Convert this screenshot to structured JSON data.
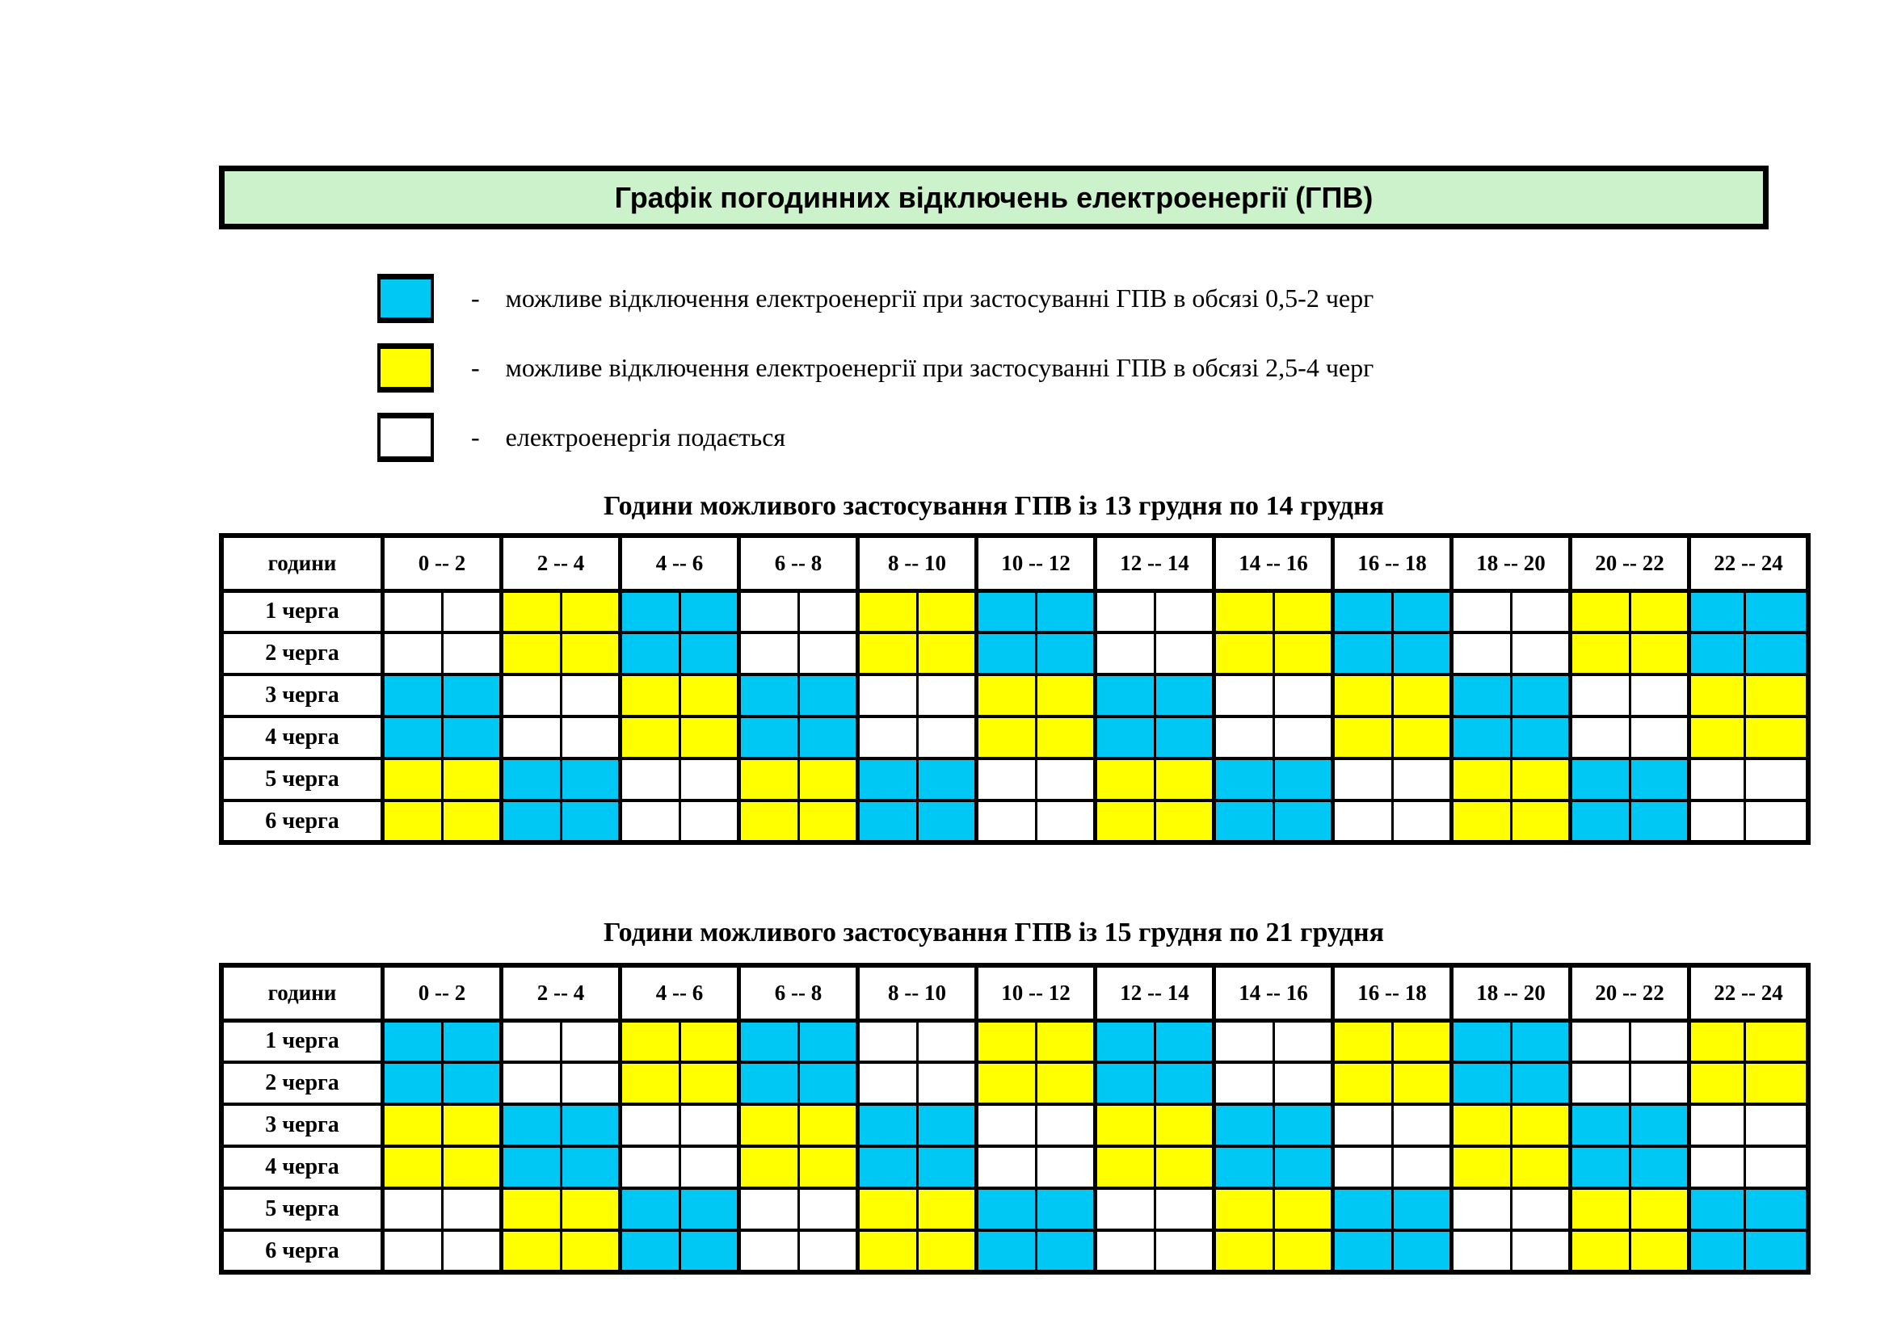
{
  "header": {
    "title": "Графік погодинних відключень електроенергії (ГПВ)",
    "bg_color": "#ccf2cc"
  },
  "legend": {
    "dash": "-",
    "items": [
      {
        "color_name": "cyan",
        "color": "#00c8f4",
        "label": "можливе відключення електроенергії при застосуванні ГПВ в обсязі 0,5-2 черг"
      },
      {
        "color_name": "yellow",
        "color": "#ffff00",
        "label": "можливе відключення електроенергії при застосуванні ГПВ в обсязі 2,5-4 черг"
      },
      {
        "color_name": "white",
        "color": "#ffffff",
        "label": "електроенергія подається"
      }
    ]
  },
  "chart_data": {
    "type": "heatmap",
    "corner_label": "години",
    "columns": [
      "0 -- 2",
      "2 -- 4",
      "4 -- 6",
      "6 -- 8",
      "8 -- 10",
      "10 -- 12",
      "12 -- 14",
      "14 -- 16",
      "16 -- 18",
      "18 -- 20",
      "20 -- 22",
      "22 -- 24"
    ],
    "subcells_per_column": 2,
    "colors": {
      "cyan": "#00c8f4",
      "yellow": "#ffff00",
      "white": "#ffffff"
    },
    "color_meaning": {
      "cyan": "можливе відключення електроенергії при застосуванні ГПВ в обсязі 0,5-2 черг",
      "yellow": "можливе відключення електроенергії при застосуванні ГПВ в обсязі 2,5-4 черг",
      "white": "електроенергія подається"
    },
    "tables": [
      {
        "title": "Години можливого застосування ГПВ із 13 грудня по 14 грудня",
        "rows": [
          {
            "label": "1 черга",
            "blocks": [
              "white",
              "yellow",
              "cyan",
              "white",
              "yellow",
              "cyan",
              "white",
              "yellow",
              "cyan",
              "white",
              "yellow",
              "cyan"
            ]
          },
          {
            "label": "2 черга",
            "blocks": [
              "white",
              "yellow",
              "cyan",
              "white",
              "yellow",
              "cyan",
              "white",
              "yellow",
              "cyan",
              "white",
              "yellow",
              "cyan"
            ]
          },
          {
            "label": "3 черга",
            "blocks": [
              "cyan",
              "white",
              "yellow",
              "cyan",
              "white",
              "yellow",
              "cyan",
              "white",
              "yellow",
              "cyan",
              "white",
              "yellow"
            ]
          },
          {
            "label": "4 черга",
            "blocks": [
              "cyan",
              "white",
              "yellow",
              "cyan",
              "white",
              "yellow",
              "cyan",
              "white",
              "yellow",
              "cyan",
              "white",
              "yellow"
            ]
          },
          {
            "label": "5 черга",
            "blocks": [
              "yellow",
              "cyan",
              "white",
              "yellow",
              "cyan",
              "white",
              "yellow",
              "cyan",
              "white",
              "yellow",
              "cyan",
              "white"
            ]
          },
          {
            "label": "6 черга",
            "blocks": [
              "yellow",
              "cyan",
              "white",
              "yellow",
              "cyan",
              "white",
              "yellow",
              "cyan",
              "white",
              "yellow",
              "cyan",
              "white"
            ]
          }
        ]
      },
      {
        "title": "Години можливого застосування ГПВ із 15 грудня по 21 грудня",
        "rows": [
          {
            "label": "1 черга",
            "blocks": [
              "cyan",
              "white",
              "yellow",
              "cyan",
              "white",
              "yellow",
              "cyan",
              "white",
              "yellow",
              "cyan",
              "white",
              "yellow"
            ]
          },
          {
            "label": "2 черга",
            "blocks": [
              "cyan",
              "white",
              "yellow",
              "cyan",
              "white",
              "yellow",
              "cyan",
              "white",
              "yellow",
              "cyan",
              "white",
              "yellow"
            ]
          },
          {
            "label": "3 черга",
            "blocks": [
              "yellow",
              "cyan",
              "white",
              "yellow",
              "cyan",
              "white",
              "yellow",
              "cyan",
              "white",
              "yellow",
              "cyan",
              "white"
            ]
          },
          {
            "label": "4 черга",
            "blocks": [
              "yellow",
              "cyan",
              "white",
              "yellow",
              "cyan",
              "white",
              "yellow",
              "cyan",
              "white",
              "yellow",
              "cyan",
              "white"
            ]
          },
          {
            "label": "5 черга",
            "blocks": [
              "white",
              "yellow",
              "cyan",
              "white",
              "yellow",
              "cyan",
              "white",
              "yellow",
              "cyan",
              "white",
              "yellow",
              "cyan"
            ]
          },
          {
            "label": "6 черга",
            "blocks": [
              "white",
              "yellow",
              "cyan",
              "white",
              "yellow",
              "cyan",
              "white",
              "yellow",
              "cyan",
              "white",
              "yellow",
              "cyan"
            ]
          }
        ]
      }
    ]
  }
}
